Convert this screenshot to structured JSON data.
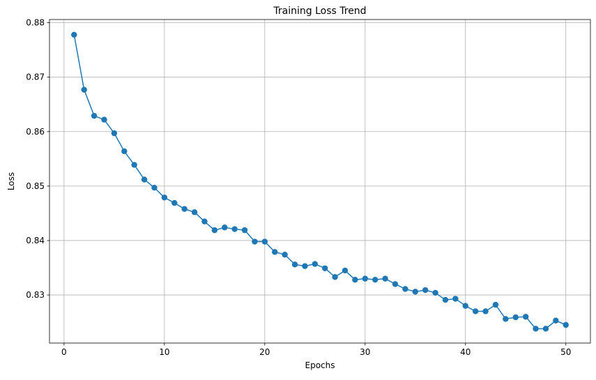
{
  "chart_data": {
    "type": "line",
    "title": "Training Loss Trend",
    "xlabel": "Epochs",
    "ylabel": "Loss",
    "xlim": [
      -1.45,
      52.45
    ],
    "ylim": [
      0.82117,
      0.88059
    ],
    "xticks": [
      0,
      10,
      20,
      30,
      40,
      50
    ],
    "yticks": [
      0.83,
      0.84,
      0.85,
      0.86,
      0.87,
      0.88
    ],
    "xtick_labels": [
      "0",
      "10",
      "20",
      "30",
      "40",
      "50"
    ],
    "ytick_labels": [
      "0.83",
      "0.84",
      "0.85",
      "0.86",
      "0.87",
      "0.88"
    ],
    "grid": true,
    "color": "#1f77b4",
    "x": [
      1,
      2,
      3,
      4,
      5,
      6,
      7,
      8,
      9,
      10,
      11,
      12,
      13,
      14,
      15,
      16,
      17,
      18,
      19,
      20,
      21,
      22,
      23,
      24,
      25,
      26,
      27,
      28,
      29,
      30,
      31,
      32,
      33,
      34,
      35,
      36,
      37,
      38,
      39,
      40,
      41,
      42,
      43,
      44,
      45,
      46,
      47,
      48,
      49,
      50
    ],
    "series": [
      {
        "values": [
          0.8778,
          0.8677,
          0.8629,
          0.8622,
          0.8597,
          0.8564,
          0.8539,
          0.8512,
          0.8497,
          0.8479,
          0.8469,
          0.8458,
          0.8452,
          0.8435,
          0.8419,
          0.8424,
          0.8421,
          0.8419,
          0.8398,
          0.8398,
          0.8379,
          0.8374,
          0.8356,
          0.8353,
          0.8357,
          0.8349,
          0.8333,
          0.8345,
          0.8328,
          0.833,
          0.8328,
          0.833,
          0.832,
          0.8311,
          0.8306,
          0.8309,
          0.8304,
          0.8291,
          0.8293,
          0.828,
          0.827,
          0.827,
          0.8282,
          0.8256,
          0.8259,
          0.826,
          0.8238,
          0.8238,
          0.8253,
          0.8245
        ]
      }
    ]
  }
}
